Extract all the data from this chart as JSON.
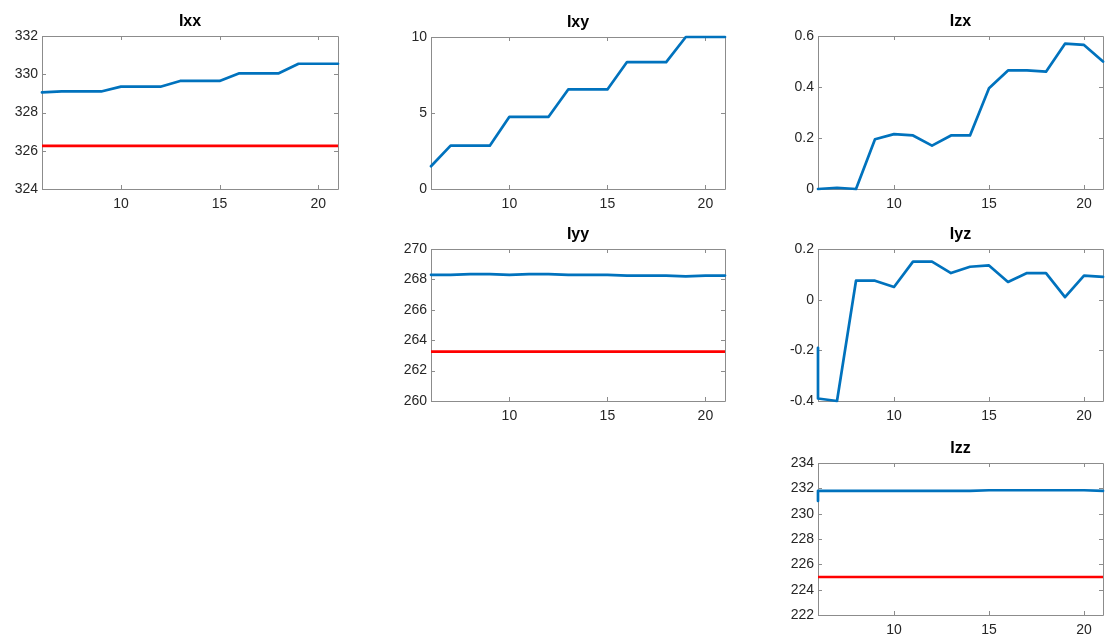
{
  "chart_data": [
    {
      "type": "line",
      "title": "Ixx",
      "x": [
        6,
        7,
        8,
        9,
        10,
        11,
        12,
        13,
        14,
        15,
        16,
        17,
        18,
        19,
        20,
        21
      ],
      "series": [
        {
          "color": "#0072bd",
          "values": [
            329.05,
            329.1,
            329.1,
            329.1,
            329.35,
            329.35,
            329.35,
            329.65,
            329.65,
            329.65,
            330.05,
            330.05,
            330.05,
            330.55,
            330.55,
            330.55
          ]
        }
      ],
      "xlim": [
        6,
        21
      ],
      "xticks": [
        10,
        15,
        20
      ],
      "ylim": [
        324,
        332
      ],
      "yticks": [
        324,
        326,
        328,
        330,
        332
      ],
      "ref_lines": [
        {
          "axis": "y",
          "value": 326.25,
          "color": "#ff0000"
        }
      ],
      "grid": false,
      "legend": false
    },
    {
      "type": "line",
      "title": "Ixy",
      "x": [
        6,
        7,
        8,
        9,
        10,
        11,
        12,
        13,
        14,
        15,
        16,
        17,
        18,
        19,
        20,
        21
      ],
      "series": [
        {
          "color": "#0072bd",
          "values": [
            1.5,
            2.85,
            2.85,
            2.85,
            4.75,
            4.75,
            4.75,
            6.55,
            6.55,
            6.55,
            8.35,
            8.35,
            8.35,
            10,
            10,
            10
          ]
        }
      ],
      "xlim": [
        6,
        21
      ],
      "xticks": [
        10,
        15,
        20
      ],
      "ylim": [
        0,
        10
      ],
      "yticks": [
        0,
        5,
        10
      ],
      "grid": false,
      "legend": false
    },
    {
      "type": "line",
      "title": "Izx",
      "x": [
        6,
        7,
        8,
        9,
        10,
        11,
        12,
        13,
        14,
        15,
        16,
        17,
        18,
        19,
        20,
        21
      ],
      "series": [
        {
          "color": "#0072bd",
          "values": [
            0,
            0.005,
            0,
            0.195,
            0.215,
            0.21,
            0.17,
            0.21,
            0.21,
            0.395,
            0.465,
            0.465,
            0.46,
            0.57,
            0.565,
            0.5
          ]
        }
      ],
      "xlim": [
        6,
        21
      ],
      "xticks": [
        10,
        15,
        20
      ],
      "ylim": [
        0,
        0.6
      ],
      "yticks": [
        0,
        0.2,
        0.4,
        0.6
      ],
      "grid": false,
      "legend": false
    },
    {
      "type": "line",
      "title": "Iyy",
      "x": [
        6,
        7,
        8,
        9,
        10,
        11,
        12,
        13,
        14,
        15,
        16,
        17,
        18,
        19,
        20,
        21
      ],
      "series": [
        {
          "color": "#0072bd",
          "values": [
            268.3,
            268.3,
            268.35,
            268.35,
            268.3,
            268.35,
            268.35,
            268.3,
            268.3,
            268.3,
            268.25,
            268.25,
            268.25,
            268.2,
            268.25,
            268.25
          ]
        }
      ],
      "xlim": [
        6,
        21
      ],
      "xticks": [
        10,
        15,
        20
      ],
      "ylim": [
        260,
        270
      ],
      "yticks": [
        260,
        262,
        264,
        266,
        268,
        270
      ],
      "ref_lines": [
        {
          "axis": "y",
          "value": 263.25,
          "color": "#ff0000"
        }
      ],
      "grid": false,
      "legend": false
    },
    {
      "type": "line",
      "title": "Iyz",
      "x": [
        6,
        6,
        7,
        8,
        9,
        10,
        11,
        12,
        13,
        14,
        15,
        16,
        17,
        18,
        19,
        20,
        21
      ],
      "series": [
        {
          "color": "#0072bd",
          "values": [
            -0.19,
            -0.39,
            -0.4,
            0.075,
            0.075,
            0.05,
            0.15,
            0.15,
            0.105,
            0.13,
            0.135,
            0.07,
            0.105,
            0.105,
            0.01,
            0.095,
            0.09
          ]
        }
      ],
      "xlim": [
        6,
        21
      ],
      "xticks": [
        10,
        15,
        20
      ],
      "ylim": [
        -0.4,
        0.2
      ],
      "yticks": [
        -0.4,
        -0.2,
        0,
        0.2
      ],
      "grid": false,
      "legend": false
    },
    {
      "type": "line",
      "title": "Izz",
      "x": [
        6,
        6,
        7,
        8,
        9,
        10,
        11,
        12,
        13,
        14,
        15,
        16,
        17,
        18,
        19,
        20,
        21
      ],
      "series": [
        {
          "color": "#0072bd",
          "values": [
            231,
            231.8,
            231.8,
            231.8,
            231.8,
            231.8,
            231.8,
            231.8,
            231.8,
            231.8,
            231.85,
            231.85,
            231.85,
            231.85,
            231.85,
            231.85,
            231.8
          ]
        }
      ],
      "xlim": [
        6,
        21
      ],
      "xticks": [
        10,
        15,
        20
      ],
      "ylim": [
        222,
        234
      ],
      "yticks": [
        222,
        224,
        226,
        228,
        230,
        232,
        234
      ],
      "ref_lines": [
        {
          "axis": "y",
          "value": 225,
          "color": "#ff0000"
        }
      ],
      "grid": false,
      "legend": false
    }
  ]
}
